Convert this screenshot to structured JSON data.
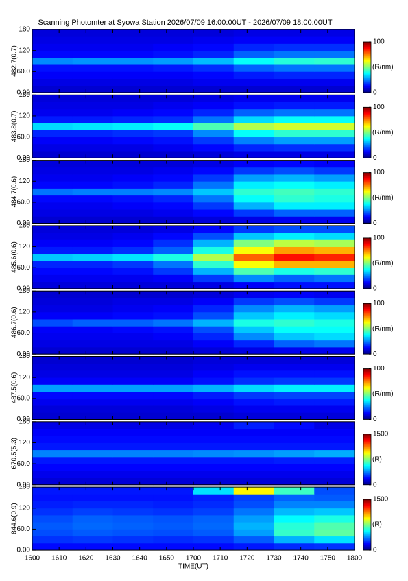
{
  "chart_data": [
    {
      "type": "heatmap",
      "title": "Scanning Photomter at Syowa Station 2026/07/09 16:00:00UT - 2026/07/09 18:00:00UT",
      "ylabel": "482.7(0.7)",
      "colormap": "jet",
      "xbins": [
        0,
        15,
        30,
        45,
        60,
        75,
        90,
        105,
        120
      ],
      "ybins": [
        0,
        20,
        40,
        60,
        80,
        100,
        120,
        140,
        160,
        180
      ],
      "ylim": [
        0,
        180
      ],
      "yticks": [
        {
          "value": 0,
          "label": "0.00"
        },
        {
          "value": 60,
          "label": "60.0"
        },
        120,
        180
      ],
      "clim": [
        0,
        100
      ],
      "cticks": [
        0,
        100
      ],
      "clabel": "(R/nm)",
      "values": [
        [
          8,
          8,
          8,
          8,
          8,
          8,
          8,
          8
        ],
        [
          10,
          10,
          10,
          10,
          11,
          11,
          11,
          11
        ],
        [
          12,
          12,
          12,
          12,
          13,
          15,
          16,
          16
        ],
        [
          14,
          14,
          14,
          15,
          17,
          22,
          24,
          24
        ],
        [
          26,
          27,
          27,
          28,
          31,
          38,
          41,
          42
        ],
        [
          13,
          13,
          13,
          14,
          16,
          22,
          24,
          24
        ],
        [
          11,
          11,
          11,
          12,
          13,
          16,
          17,
          17
        ],
        [
          10,
          10,
          10,
          10,
          11,
          12,
          12,
          12
        ],
        [
          9,
          9,
          9,
          9,
          9,
          10,
          10,
          10
        ]
      ]
    },
    {
      "type": "heatmap",
      "ylabel": "483.8(0.7)",
      "colormap": "jet",
      "xbins": [
        0,
        15,
        30,
        45,
        60,
        75,
        90,
        105,
        120
      ],
      "ybins": [
        0,
        20,
        40,
        60,
        80,
        100,
        120,
        140,
        160,
        180
      ],
      "ylim": [
        0,
        180
      ],
      "yticks": [
        {
          "value": 0,
          "label": "0.00"
        },
        {
          "value": 60,
          "label": "60.0"
        },
        120,
        180
      ],
      "clim": [
        0,
        100
      ],
      "cticks": [
        0,
        100
      ],
      "clabel": "(R/nm)",
      "values": [
        [
          8,
          8,
          8,
          8,
          9,
          10,
          10,
          10
        ],
        [
          10,
          10,
          10,
          11,
          13,
          16,
          17,
          17
        ],
        [
          12,
          12,
          13,
          14,
          18,
          25,
          28,
          28
        ],
        [
          16,
          16,
          17,
          18,
          26,
          38,
          42,
          42
        ],
        [
          34,
          35,
          36,
          38,
          45,
          55,
          58,
          58
        ],
        [
          15,
          15,
          16,
          17,
          24,
          34,
          38,
          38
        ],
        [
          11,
          11,
          12,
          13,
          16,
          22,
          24,
          24
        ],
        [
          10,
          10,
          10,
          11,
          12,
          14,
          15,
          15
        ],
        [
          9,
          9,
          9,
          9,
          10,
          11,
          11,
          11
        ]
      ]
    },
    {
      "type": "heatmap",
      "ylabel": "484.7(0.6)",
      "colormap": "jet",
      "xbins": [
        0,
        15,
        30,
        45,
        60,
        75,
        90,
        105,
        120
      ],
      "ybins": [
        0,
        20,
        40,
        60,
        80,
        100,
        120,
        140,
        160,
        180
      ],
      "ylim": [
        0,
        180
      ],
      "yticks": [
        {
          "value": 0,
          "label": "0.00"
        },
        {
          "value": 60,
          "label": "60.0"
        },
        120,
        180
      ],
      "clim": [
        0,
        100
      ],
      "cticks": [
        0,
        100
      ],
      "clabel": "(R/nm)",
      "values": [
        [
          8,
          8,
          8,
          8,
          9,
          10,
          11,
          11
        ],
        [
          10,
          10,
          10,
          11,
          13,
          18,
          22,
          22
        ],
        [
          11,
          11,
          12,
          13,
          18,
          30,
          36,
          36
        ],
        [
          13,
          13,
          14,
          16,
          24,
          38,
          42,
          40
        ],
        [
          24,
          25,
          25,
          26,
          32,
          42,
          44,
          42
        ],
        [
          13,
          13,
          14,
          16,
          24,
          36,
          38,
          36
        ],
        [
          11,
          11,
          12,
          13,
          18,
          28,
          30,
          28
        ],
        [
          10,
          10,
          10,
          11,
          13,
          18,
          20,
          18
        ],
        [
          9,
          9,
          9,
          9,
          10,
          12,
          13,
          12
        ]
      ]
    },
    {
      "type": "heatmap",
      "ylabel": "485.6(0.6)",
      "colormap": "jet",
      "xbins": [
        0,
        15,
        30,
        45,
        60,
        75,
        90,
        105,
        120
      ],
      "ybins": [
        0,
        20,
        40,
        60,
        80,
        100,
        120,
        140,
        160,
        180
      ],
      "ylim": [
        0,
        180
      ],
      "yticks": [
        {
          "value": 0,
          "label": "0.00"
        },
        {
          "value": 60,
          "label": "60.0"
        },
        120,
        180
      ],
      "clim": [
        0,
        100
      ],
      "cticks": [
        0,
        100
      ],
      "clabel": "(R/nm)",
      "values": [
        [
          9,
          9,
          9,
          9,
          10,
          12,
          14,
          14
        ],
        [
          11,
          11,
          11,
          12,
          18,
          26,
          22,
          24
        ],
        [
          13,
          13,
          14,
          18,
          30,
          45,
          40,
          42
        ],
        [
          16,
          16,
          18,
          24,
          42,
          62,
          70,
          70
        ],
        [
          32,
          33,
          35,
          40,
          55,
          78,
          86,
          84
        ],
        [
          15,
          15,
          17,
          22,
          40,
          62,
          72,
          70
        ],
        [
          12,
          12,
          13,
          17,
          30,
          50,
          56,
          54
        ],
        [
          10,
          10,
          11,
          13,
          20,
          32,
          36,
          34
        ],
        [
          9,
          9,
          9,
          10,
          13,
          18,
          20,
          20
        ]
      ]
    },
    {
      "type": "heatmap",
      "ylabel": "486.7(0.6)",
      "colormap": "jet",
      "xbins": [
        0,
        15,
        30,
        45,
        60,
        75,
        90,
        105,
        120
      ],
      "ybins": [
        0,
        20,
        40,
        60,
        80,
        100,
        120,
        140,
        160,
        180
      ],
      "ylim": [
        0,
        180
      ],
      "yticks": [
        {
          "value": 0,
          "label": "0.00"
        },
        {
          "value": 60,
          "label": "60.0"
        },
        120,
        180
      ],
      "clim": [
        0,
        100
      ],
      "cticks": [
        0,
        100
      ],
      "clabel": "(R/nm)",
      "values": [
        [
          8,
          8,
          8,
          8,
          9,
          10,
          11,
          11
        ],
        [
          10,
          10,
          10,
          10,
          12,
          16,
          22,
          24
        ],
        [
          11,
          11,
          11,
          12,
          16,
          26,
          32,
          34
        ],
        [
          12,
          12,
          13,
          14,
          20,
          32,
          38,
          38
        ],
        [
          20,
          22,
          22,
          24,
          30,
          40,
          42,
          40
        ],
        [
          12,
          12,
          13,
          14,
          20,
          32,
          36,
          34
        ],
        [
          10,
          10,
          11,
          12,
          16,
          26,
          30,
          28
        ],
        [
          9,
          9,
          10,
          10,
          12,
          18,
          20,
          18
        ],
        [
          8,
          8,
          8,
          8,
          9,
          11,
          12,
          11
        ]
      ]
    },
    {
      "type": "heatmap",
      "ylabel": "487.5(0.6)",
      "colormap": "jet",
      "xbins": [
        0,
        15,
        30,
        45,
        60,
        75,
        90,
        105,
        120
      ],
      "ybins": [
        0,
        20,
        40,
        60,
        80,
        100,
        120,
        140,
        160,
        180
      ],
      "ylim": [
        0,
        180
      ],
      "yticks": [
        {
          "value": 0,
          "label": "0.00"
        },
        {
          "value": 60,
          "label": "60.0"
        },
        120,
        180
      ],
      "clim": [
        0,
        100
      ],
      "cticks": [
        0,
        100
      ],
      "clabel": "(R/nm)",
      "values": [
        [
          8,
          8,
          8,
          8,
          8,
          9,
          9,
          9
        ],
        [
          9,
          9,
          9,
          9,
          10,
          11,
          11,
          11
        ],
        [
          11,
          11,
          11,
          11,
          12,
          14,
          15,
          15
        ],
        [
          13,
          13,
          13,
          13,
          15,
          18,
          19,
          19
        ],
        [
          28,
          28,
          28,
          28,
          30,
          34,
          36,
          36
        ],
        [
          12,
          12,
          12,
          12,
          14,
          17,
          18,
          18
        ],
        [
          10,
          10,
          10,
          10,
          12,
          14,
          14,
          14
        ],
        [
          9,
          9,
          9,
          9,
          10,
          11,
          11,
          11
        ],
        [
          8,
          8,
          8,
          8,
          9,
          9,
          9,
          9
        ]
      ]
    },
    {
      "type": "heatmap",
      "ylabel": "670.5(5.3)",
      "colormap": "jet",
      "xbins": [
        0,
        15,
        30,
        45,
        60,
        75,
        90,
        105,
        120
      ],
      "ybins": [
        0,
        20,
        40,
        60,
        80,
        100,
        120,
        140,
        160,
        180
      ],
      "ylim": [
        0,
        180
      ],
      "yticks": [
        {
          "value": 0,
          "label": "0.00"
        },
        {
          "value": 60,
          "label": "60.0"
        },
        120,
        180
      ],
      "clim": [
        0,
        1500
      ],
      "cticks": [
        0,
        1500
      ],
      "clabel": "(R)",
      "values": [
        [
          130,
          130,
          130,
          130,
          130,
          130,
          130,
          130
        ],
        [
          160,
          160,
          160,
          160,
          160,
          160,
          160,
          160
        ],
        [
          190,
          190,
          190,
          190,
          190,
          190,
          190,
          190
        ],
        [
          220,
          220,
          220,
          220,
          220,
          220,
          230,
          230
        ],
        [
          380,
          380,
          380,
          380,
          390,
          400,
          420,
          440
        ],
        [
          220,
          220,
          220,
          220,
          220,
          220,
          220,
          220
        ],
        [
          200,
          200,
          200,
          200,
          200,
          200,
          200,
          200
        ],
        [
          180,
          180,
          180,
          180,
          180,
          180,
          180,
          180
        ],
        [
          150,
          150,
          150,
          150,
          170,
          230,
          200,
          150
        ]
      ]
    },
    {
      "type": "heatmap",
      "ylabel": "844.6(0.9)",
      "xlabel": "TIME(UT)",
      "colormap": "jet",
      "xbins": [
        0,
        15,
        30,
        45,
        60,
        75,
        90,
        105,
        120
      ],
      "ybins": [
        0,
        20,
        40,
        60,
        80,
        100,
        120,
        140,
        160,
        180
      ],
      "xlim": [
        0,
        120
      ],
      "xticks": [
        {
          "value": 0,
          "label": "1600"
        },
        {
          "value": 10,
          "label": "1610"
        },
        {
          "value": 20,
          "label": "1620"
        },
        {
          "value": 30,
          "label": "1630"
        },
        {
          "value": 40,
          "label": "1640"
        },
        {
          "value": 50,
          "label": "1650"
        },
        {
          "value": 60,
          "label": "1700"
        },
        {
          "value": 70,
          "label": "1710"
        },
        {
          "value": 80,
          "label": "1720"
        },
        {
          "value": 90,
          "label": "1730"
        },
        {
          "value": 100,
          "label": "1740"
        },
        {
          "value": 110,
          "label": "1750"
        },
        {
          "value": 120,
          "label": "1800"
        }
      ],
      "ylim": [
        0,
        180
      ],
      "yticks": [
        {
          "value": 0,
          "label": "0.00"
        },
        {
          "value": 60,
          "label": "60.0"
        },
        120,
        180
      ],
      "clim": [
        0,
        1500
      ],
      "cticks": [
        0,
        1500
      ],
      "clabel": "(R)",
      "values": [
        [
          200,
          200,
          200,
          200,
          200,
          220,
          250,
          260
        ],
        [
          260,
          270,
          260,
          250,
          260,
          320,
          450,
          520
        ],
        [
          300,
          320,
          310,
          300,
          320,
          420,
          640,
          700
        ],
        [
          320,
          340,
          330,
          320,
          340,
          450,
          620,
          680
        ],
        [
          300,
          330,
          320,
          310,
          330,
          420,
          560,
          600
        ],
        [
          260,
          280,
          270,
          260,
          280,
          360,
          460,
          480
        ],
        [
          230,
          240,
          240,
          230,
          250,
          300,
          380,
          380
        ],
        [
          210,
          210,
          210,
          210,
          230,
          280,
          330,
          320
        ],
        [
          220,
          220,
          220,
          220,
          520,
          950,
          650,
          300
        ]
      ]
    }
  ]
}
